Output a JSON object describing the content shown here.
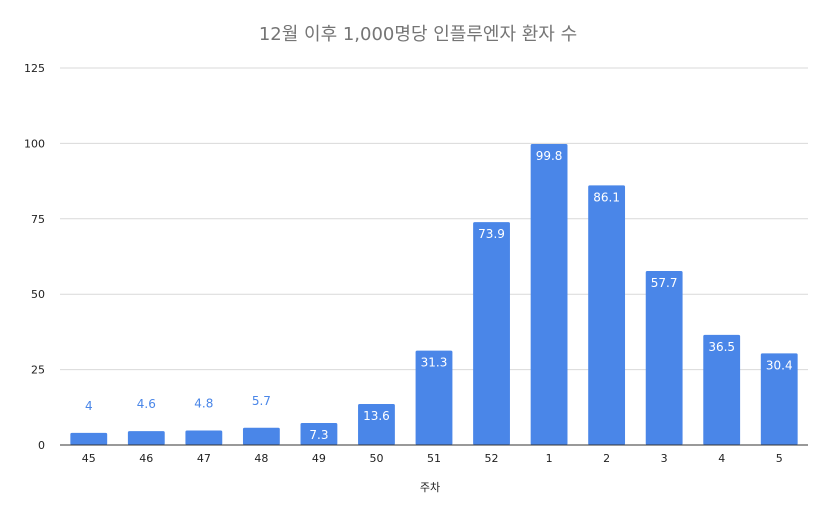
{
  "chart_data": {
    "type": "bar",
    "title": "12월 이후 1,000명당 인플루엔자 환자 수",
    "xlabel": "주차",
    "ylabel": "",
    "categories": [
      "45",
      "46",
      "47",
      "48",
      "49",
      "50",
      "51",
      "52",
      "1",
      "2",
      "3",
      "4",
      "5"
    ],
    "values": [
      4,
      4.6,
      4.8,
      5.7,
      7.3,
      13.6,
      31.3,
      73.9,
      99.8,
      86.1,
      57.7,
      36.5,
      30.4
    ],
    "value_labels": [
      "4",
      "4.6",
      "4.8",
      "5.7",
      "7.3",
      "13.6",
      "31.3",
      "73.9",
      "99.8",
      "86.1",
      "57.7",
      "36.5",
      "30.4"
    ],
    "ylim": [
      0,
      125
    ],
    "yticks": [
      0,
      25,
      50,
      75,
      100,
      125
    ],
    "grid": true,
    "legend": "none",
    "bar_color": "#4a86e8",
    "title_color": "#757575"
  }
}
